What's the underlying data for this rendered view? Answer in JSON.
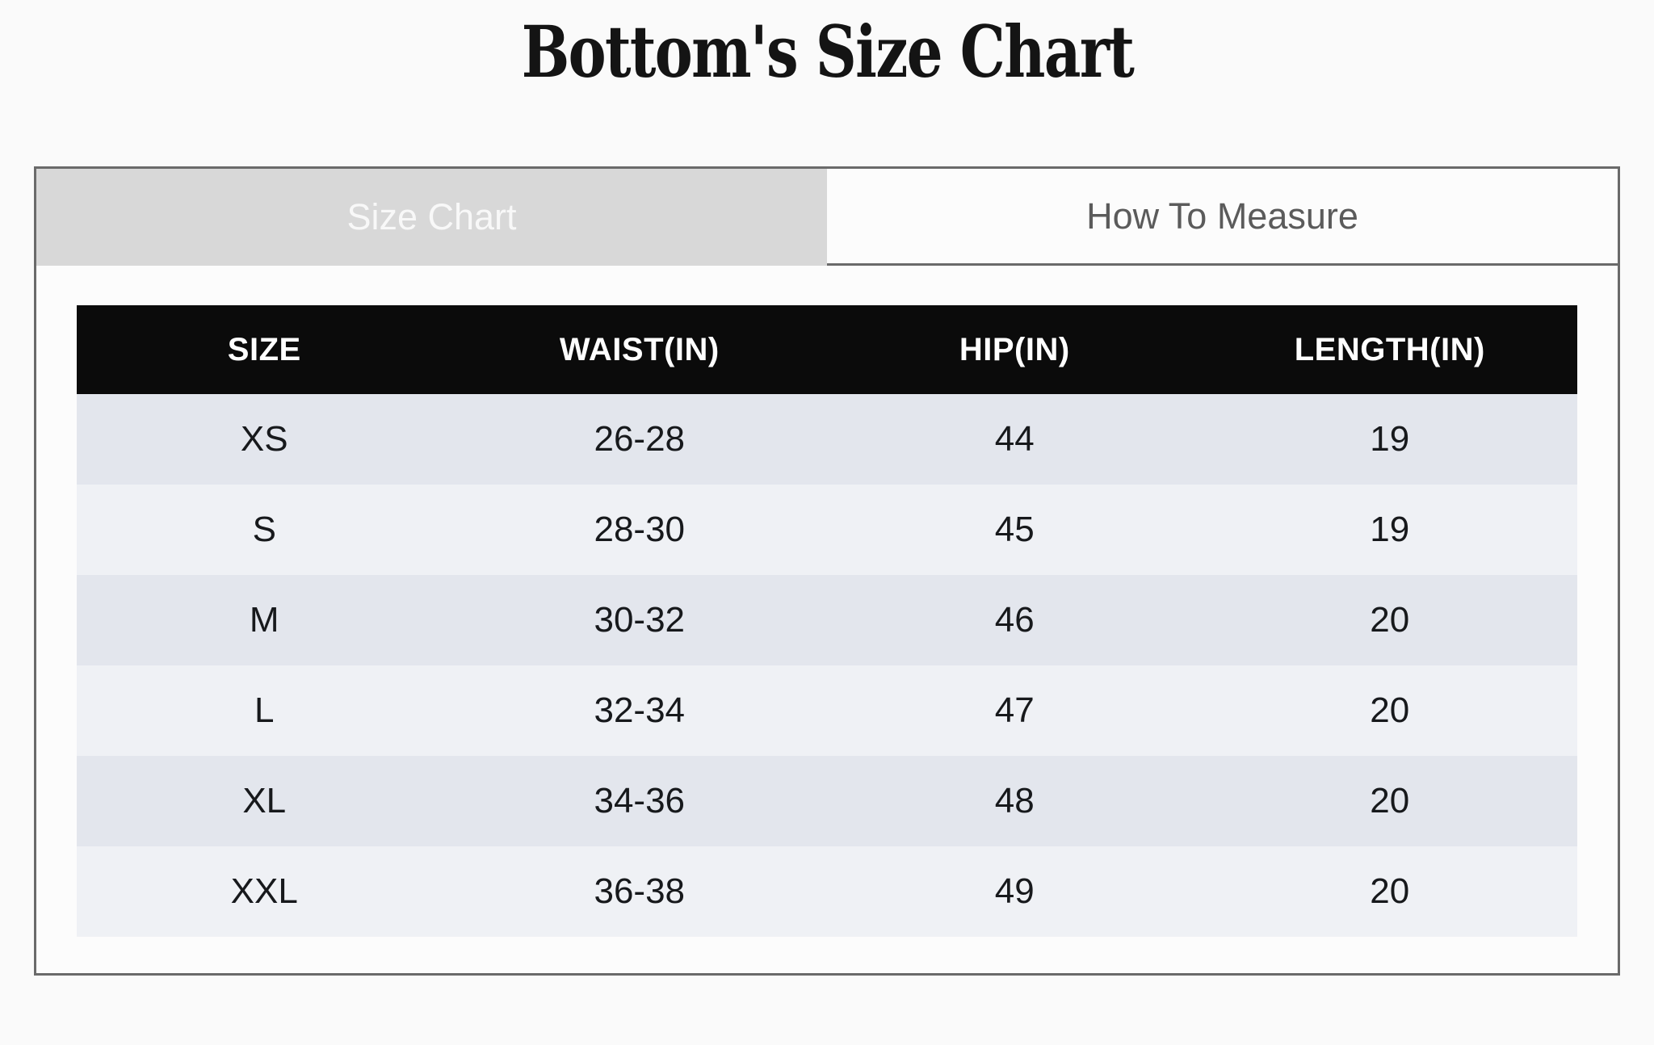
{
  "page": {
    "title": "Bottom's Size Chart"
  },
  "tabs": [
    {
      "label": "Size Chart",
      "active": true
    },
    {
      "label": "How To Measure",
      "active": false
    }
  ],
  "table": {
    "columns": [
      "SIZE",
      "WAIST(IN)",
      "HIP(IN)",
      "LENGTH(IN)"
    ],
    "rows": [
      [
        "XS",
        "26-28",
        "44",
        "19"
      ],
      [
        "S",
        "28-30",
        "45",
        "19"
      ],
      [
        "M",
        "30-32",
        "46",
        "20"
      ],
      [
        "L",
        "32-34",
        "47",
        "20"
      ],
      [
        "XL",
        "34-36",
        "48",
        "20"
      ],
      [
        "XXL",
        "36-38",
        "49",
        "20"
      ]
    ]
  },
  "colors": {
    "page_bg": "#fafafa",
    "panel_bg": "#fcfcfc",
    "panel_border": "#6a6a6a",
    "tab_active_bg": "#d8d8d8",
    "tab_active_text": "#f8f8f8",
    "tab_inactive_text": "#5b5b5b",
    "header_bg": "#0b0b0b",
    "header_text": "#ffffff",
    "row_odd_bg": "#e3e6ed",
    "row_even_bg": "#eff1f5",
    "cell_text": "#17191c",
    "title_color": "#141414"
  }
}
